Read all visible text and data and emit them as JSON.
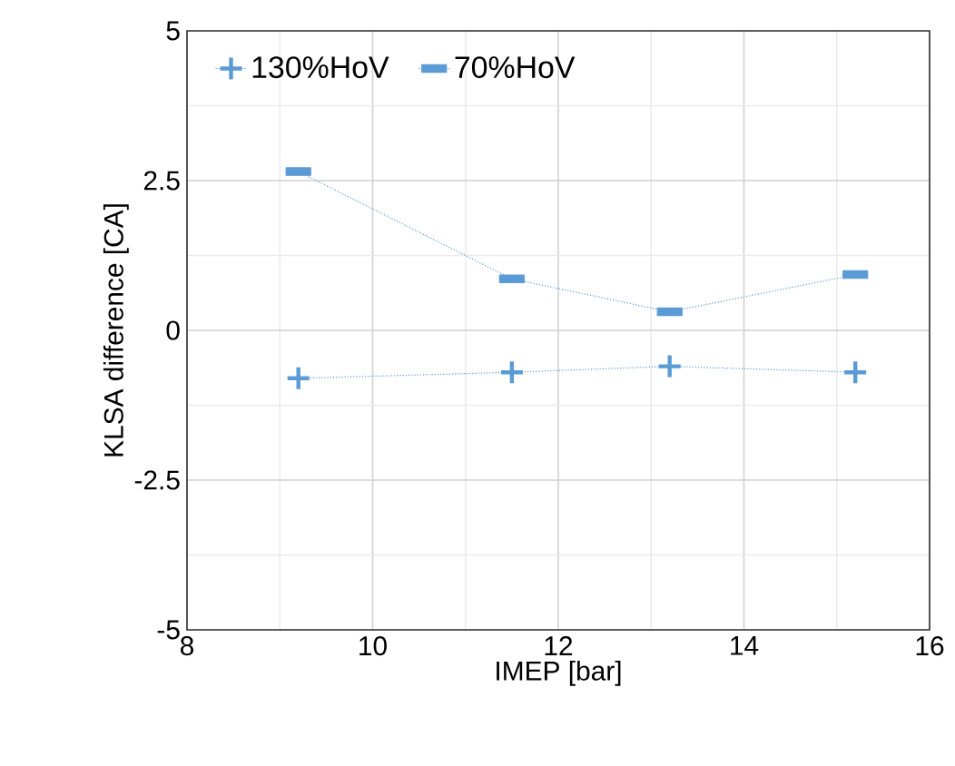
{
  "chart_data": {
    "type": "line",
    "xlabel": "IMEP [bar]",
    "ylabel": "KLSA difference [CA]",
    "x": [
      9.2,
      11.5,
      13.2,
      15.2
    ],
    "series": [
      {
        "name": "130%HoV",
        "color": "#5b9bd5",
        "values": [
          -0.8,
          -0.7,
          -0.6,
          -0.7
        ],
        "marker": "cross"
      },
      {
        "name": "70%HoV",
        "color": "#5b9bd5",
        "values": [
          2.65,
          0.86,
          0.31,
          0.93
        ],
        "marker": "square"
      }
    ],
    "xlim": [
      8,
      16
    ],
    "xticks": [
      8,
      10,
      12,
      14,
      16
    ],
    "ylim": [
      -5,
      5
    ],
    "yticks": [
      -5,
      {
        "value": -2.5,
        "label": "-2.5"
      },
      0,
      {
        "value": 2.5,
        "label": "2.5"
      },
      5
    ],
    "grid": true,
    "legend": "top left",
    "line_style": "dotted"
  }
}
